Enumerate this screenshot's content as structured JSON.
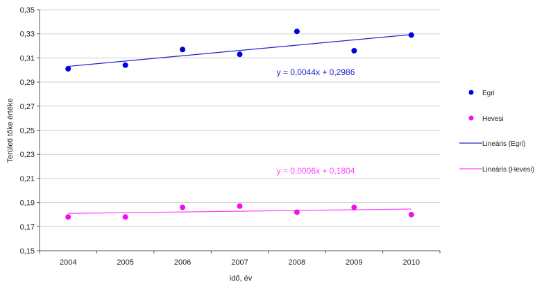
{
  "chart_data": {
    "type": "scatter",
    "xlabel": "idő, év",
    "ylabel": "Területi tőke értéke",
    "x": [
      2004,
      2005,
      2006,
      2007,
      2008,
      2009,
      2010
    ],
    "x_ticks": [
      "2004",
      "2005",
      "2006",
      "2007",
      "2008",
      "2009",
      "2010"
    ],
    "ylim": [
      0.15,
      0.35
    ],
    "y_ticks": [
      "0,35",
      "0,33",
      "0,31",
      "0,29",
      "0,27",
      "0,25",
      "0,23",
      "0,21",
      "0,19",
      "0,17",
      "0,15"
    ],
    "grid": true,
    "legend_position": "right",
    "series": [
      {
        "name": "Egri",
        "color": "#0000dd",
        "values": [
          0.301,
          0.304,
          0.317,
          0.313,
          0.332,
          0.316,
          0.329
        ]
      },
      {
        "name": "Hevesi",
        "color": "#ee11ee",
        "values": [
          0.178,
          0.178,
          0.186,
          0.187,
          0.182,
          0.186,
          0.18
        ]
      }
    ],
    "trendlines": [
      {
        "name": "Lineáris (Egri)",
        "color": "#2222cc",
        "slope": 0.0044,
        "intercept": 0.2986,
        "equation": "y = 0,0044x + 0,2986"
      },
      {
        "name": "Lineáris (Hevesi)",
        "color": "#ff44ff",
        "slope": 0.0006,
        "intercept": 0.1804,
        "equation": "y = 0,0006x + 0,1804"
      }
    ]
  }
}
